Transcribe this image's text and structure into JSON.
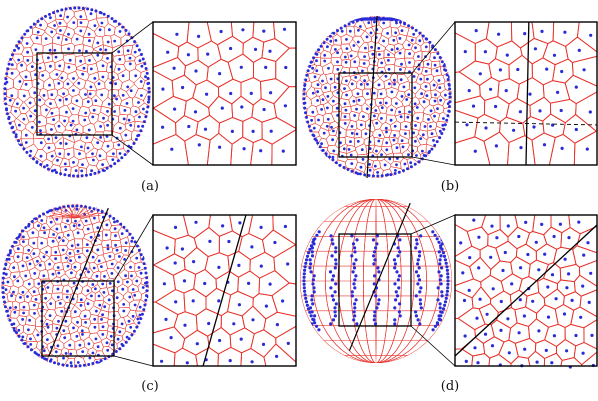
{
  "figure": {
    "panels": [
      {
        "id": "a",
        "label": "(a)",
        "sphere_style": "clustered",
        "seam": "none"
      },
      {
        "id": "b",
        "label": "(b)",
        "sphere_style": "uniform",
        "seam": "vertical"
      },
      {
        "id": "c",
        "label": "(c)",
        "sphere_style": "polar-cap",
        "seam": "diagonal"
      },
      {
        "id": "d",
        "label": "(d)",
        "sphere_style": "wireframe-bands",
        "seam": "diagonal"
      }
    ],
    "colors": {
      "cell_edges": "#e8322b",
      "points": "#2b2bd6",
      "frame": "#000000",
      "seam": "#000000"
    }
  }
}
